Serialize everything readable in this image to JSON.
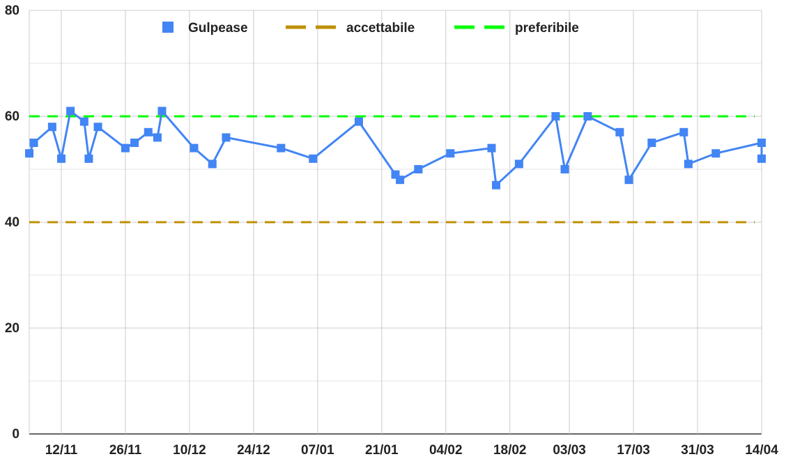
{
  "chart_data": {
    "type": "line",
    "ylim": [
      0,
      80
    ],
    "y_ticks": [
      0,
      20,
      40,
      60,
      80
    ],
    "x_ticks": [
      "12/11",
      "26/11",
      "10/12",
      "24/12",
      "07/01",
      "21/01",
      "04/02",
      "18/02",
      "03/03",
      "17/03",
      "31/03",
      "14/04"
    ],
    "grid": true,
    "legend_position": "top",
    "series": [
      {
        "name": "Gulpease",
        "color": "#4285f4",
        "marker": "square",
        "points": [
          [
            "05/11",
            53
          ],
          [
            "06/11",
            55
          ],
          [
            "10/11",
            58
          ],
          [
            "12/11",
            52
          ],
          [
            "14/11",
            61
          ],
          [
            "17/11",
            59
          ],
          [
            "18/11",
            52
          ],
          [
            "20/11",
            58
          ],
          [
            "26/11",
            54
          ],
          [
            "28/11",
            55
          ],
          [
            "01/12",
            57
          ],
          [
            "03/12",
            56
          ],
          [
            "04/12",
            61
          ],
          [
            "11/12",
            54
          ],
          [
            "15/12",
            51
          ],
          [
            "18/12",
            56
          ],
          [
            "30/12",
            54
          ],
          [
            "06/01",
            52
          ],
          [
            "16/01",
            59
          ],
          [
            "24/01",
            49
          ],
          [
            "25/01",
            48
          ],
          [
            "29/01",
            50
          ],
          [
            "05/02",
            53
          ],
          [
            "14/02",
            54
          ],
          [
            "15/02",
            47
          ],
          [
            "20/02",
            51
          ],
          [
            "28/02",
            60
          ],
          [
            "02/03",
            50
          ],
          [
            "07/03",
            60
          ],
          [
            "14/03",
            57
          ],
          [
            "16/03",
            48
          ],
          [
            "21/03",
            55
          ],
          [
            "28/03",
            57
          ],
          [
            "29/03",
            51
          ],
          [
            "04/04",
            53
          ],
          [
            "14/04",
            55
          ],
          [
            "14/04",
            52
          ]
        ]
      },
      {
        "name": "accettabile",
        "color": "#bf9000",
        "value": 40,
        "style": "dashed"
      },
      {
        "name": "preferibile",
        "color": "#00ff00",
        "value": 60,
        "style": "dashed"
      }
    ]
  }
}
